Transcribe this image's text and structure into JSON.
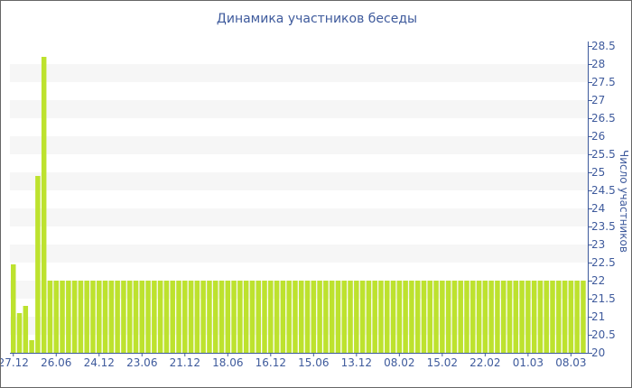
{
  "chart_data": {
    "type": "bar",
    "title": "Динамика участников беседы",
    "ylabel": "Число участников",
    "xlabel": "",
    "ylim": [
      20,
      28.5
    ],
    "y_ticks": [
      20,
      20.5,
      21,
      21.5,
      22,
      22.5,
      23,
      23.5,
      24,
      24.5,
      25,
      25.5,
      26,
      26.5,
      27,
      27.5,
      28,
      28.5
    ],
    "y_axis_position": "right",
    "x_tick_labels": [
      "27.12",
      "26.06",
      "24.12",
      "23.06",
      "21.12",
      "18.06",
      "16.12",
      "15.06",
      "13.12",
      "08.02",
      "15.02",
      "22.02",
      "01.03",
      "08.03"
    ],
    "x_tick_every_n_bars": 7,
    "values": [
      22.45,
      21.1,
      21.3,
      20.35,
      24.9,
      28.2,
      22,
      22,
      22,
      22,
      22,
      22,
      22,
      22,
      22,
      22,
      22,
      22,
      22,
      22,
      22,
      22,
      22,
      22,
      22,
      22,
      22,
      22,
      22,
      22,
      22,
      22,
      22,
      22,
      22,
      22,
      22,
      22,
      22,
      22,
      22,
      22,
      22,
      22,
      22,
      22,
      22,
      22,
      22,
      22,
      22,
      22,
      22,
      22,
      22,
      22,
      22,
      22,
      22,
      22,
      22,
      22,
      22,
      22,
      22,
      22,
      22,
      22,
      22,
      22,
      22,
      22,
      22,
      22,
      22,
      22,
      22,
      22,
      22,
      22,
      22,
      22,
      22,
      22,
      22,
      22,
      22,
      22,
      22,
      22,
      22,
      22,
      22,
      22
    ],
    "bar_color": "#bde22e",
    "axis_color": "#3e5a9c",
    "band_color": "#f6f6f6",
    "grid": "alternating horizontal bands",
    "legend": "none"
  }
}
